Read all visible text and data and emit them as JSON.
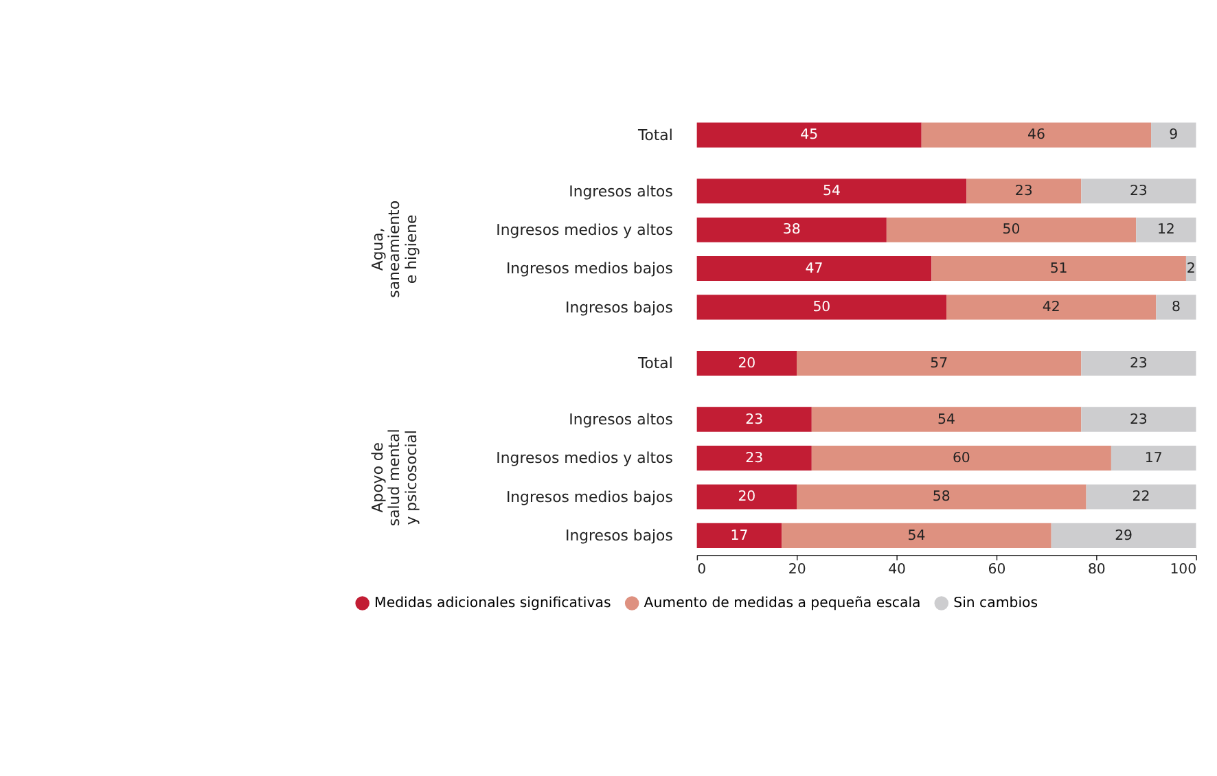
{
  "chart_data": {
    "type": "bar",
    "orientation": "horizontal",
    "stacked": true,
    "categories": [
      "Total",
      "Ingresos altos",
      "Ingresos medios y altos",
      "Ingresos medios bajos",
      "Ingresos bajos",
      "Total",
      "Ingresos altos",
      "Ingresos medios y altos",
      "Ingresos medios bajos",
      "Ingresos bajos"
    ],
    "series": [
      {
        "name": "Medidas adicionales significativas",
        "color": "#c21d34",
        "values": [
          45,
          54,
          38,
          47,
          50,
          20,
          23,
          23,
          20,
          17
        ]
      },
      {
        "name": "Aumento de medidas a pequeña escala",
        "color": "#de9180",
        "values": [
          46,
          23,
          50,
          51,
          42,
          57,
          54,
          60,
          58,
          54
        ]
      },
      {
        "name": "Sin cambios",
        "color": "#cdcdcf",
        "values": [
          9,
          23,
          12,
          2,
          8,
          23,
          23,
          17,
          22,
          29
        ]
      }
    ],
    "xlim": [
      0,
      100
    ],
    "xticks": [
      0,
      20,
      40,
      60,
      80,
      100
    ],
    "annotations": [
      "Agua,\nsaneamiento\ne higiene",
      "Apoyo de\nsalud mental\ny psicosocial"
    ],
    "data_labels": true,
    "grid": false,
    "legend": "bottom"
  }
}
